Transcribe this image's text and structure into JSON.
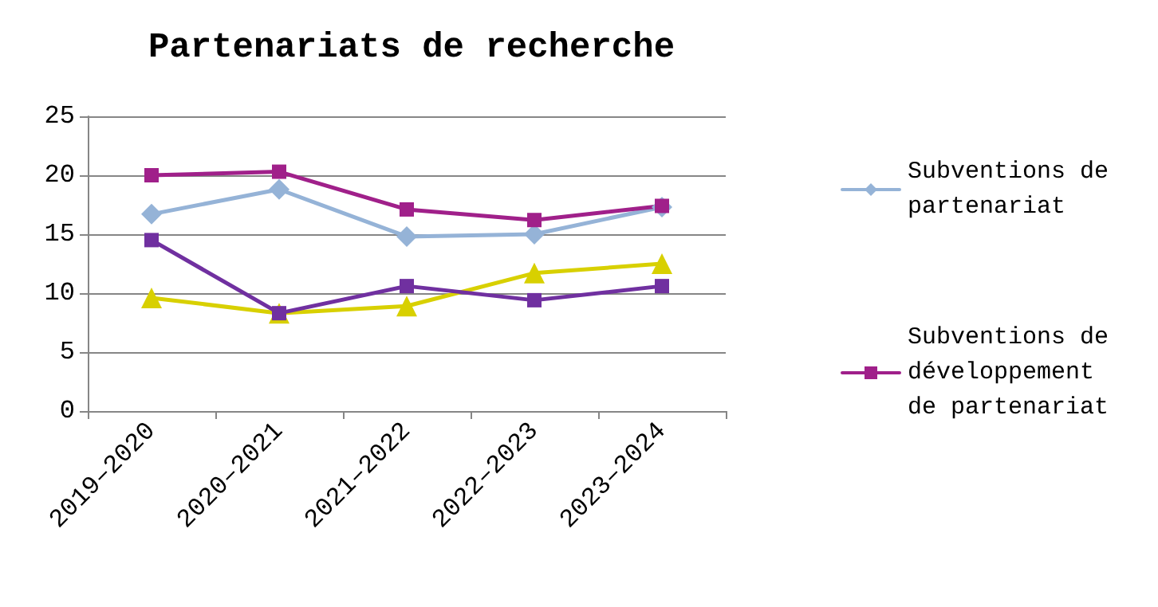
{
  "chart_data": {
    "type": "line",
    "title": "Partenariats de recherche",
    "categories": [
      "2019–2020",
      "2020–2021",
      "2021–2022",
      "2022–2023",
      "2023–2024"
    ],
    "series": [
      {
        "name": "Subventions de partenariat",
        "color": "#95b3d7",
        "marker": "diamond",
        "values": [
          16.7,
          18.8,
          14.8,
          15,
          17.3
        ]
      },
      {
        "name": "Subventions de développement de partenariat",
        "color": "#a0208a",
        "marker": "square",
        "values": [
          20,
          20.3,
          17.1,
          16.2,
          17.4
        ]
      },
      {
        "color": "#d8d000",
        "marker": "triangle",
        "values": [
          9.6,
          8.3,
          8.9,
          11.7,
          12.5
        ]
      },
      {
        "color": "#7030a0",
        "marker": "square",
        "values": [
          14.5,
          8.3,
          10.6,
          9.4,
          10.6
        ]
      }
    ],
    "ylim": [
      0,
      25
    ],
    "yticks": [
      0,
      5,
      10,
      15,
      20,
      25
    ],
    "grid": "y",
    "legend": "right",
    "line_style": "solid"
  }
}
